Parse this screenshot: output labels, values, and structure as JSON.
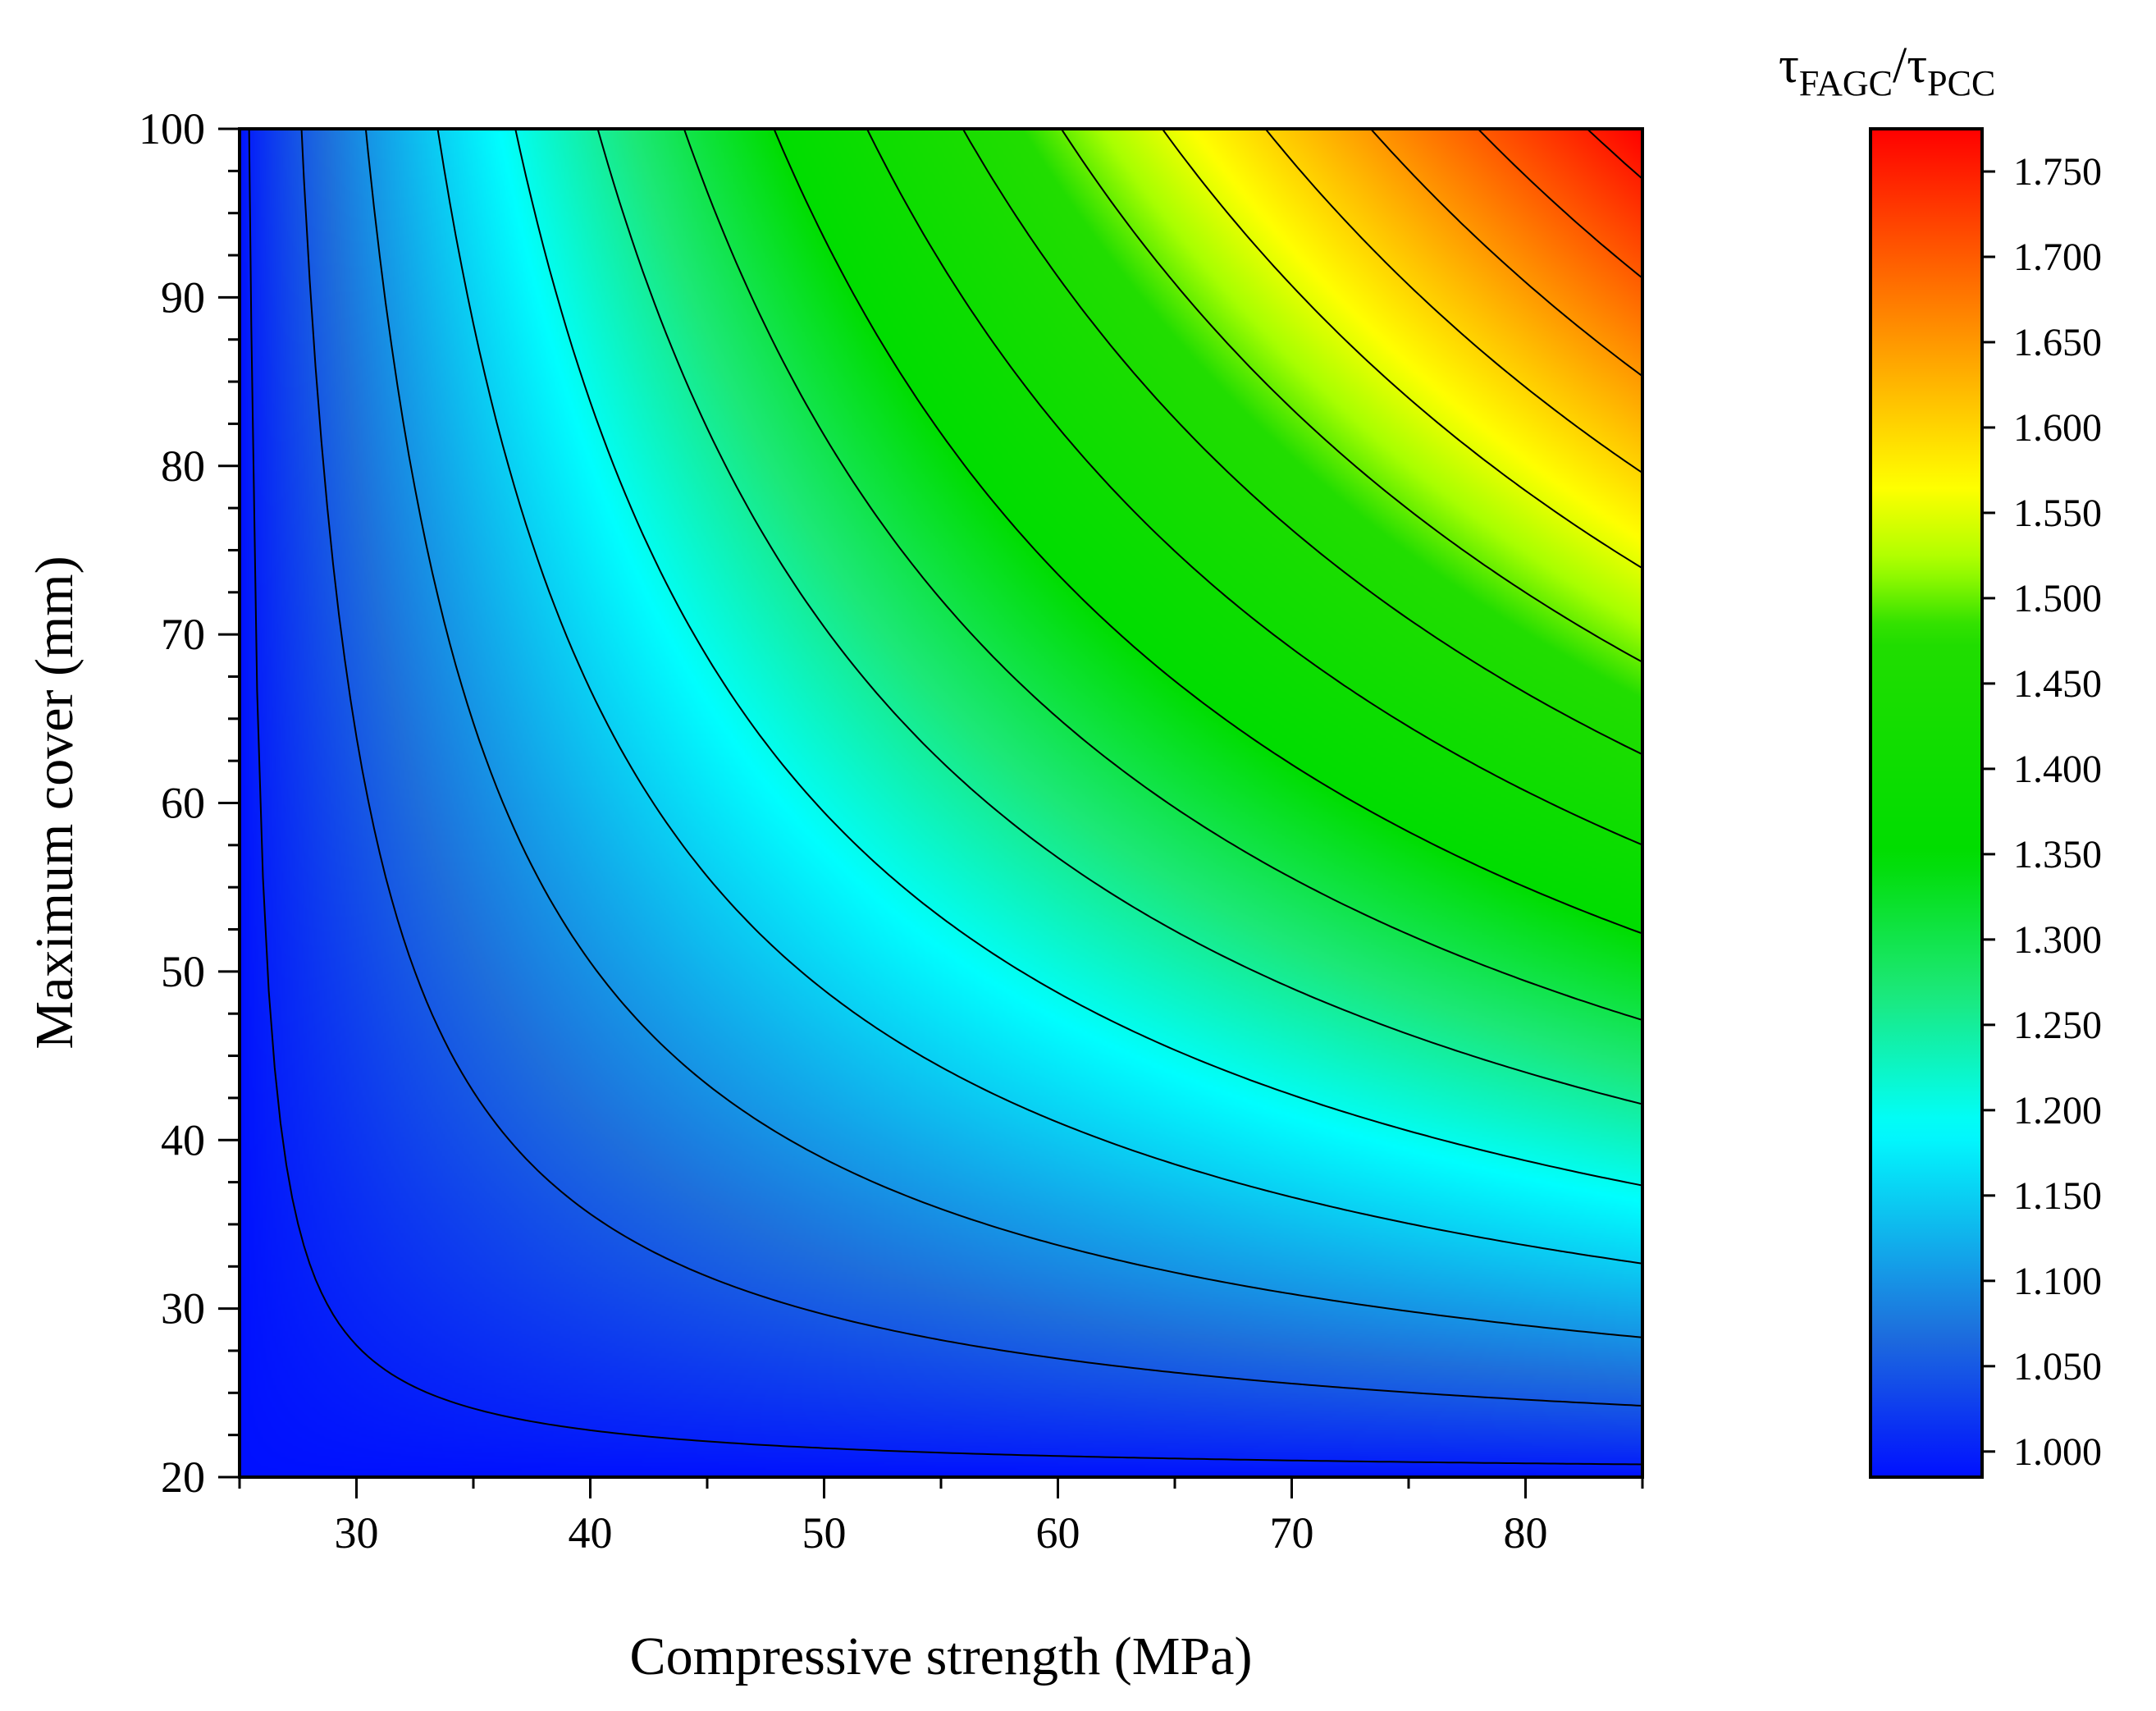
{
  "chart_data": {
    "type": "contour",
    "title": "",
    "xlabel": "Compressive strength (MPa)",
    "ylabel": "Maximum cover (mm)",
    "xlim": [
      25,
      85
    ],
    "ylim": [
      20,
      100
    ],
    "x_ticks": [
      30,
      40,
      50,
      60,
      70,
      80
    ],
    "x_tick_labels": [
      "30",
      "40",
      "50",
      "60",
      "70",
      "80"
    ],
    "y_ticks": [
      20,
      30,
      40,
      50,
      60,
      70,
      80,
      90,
      100
    ],
    "y_tick_labels": [
      "20",
      "30",
      "40",
      "50",
      "60",
      "70",
      "80",
      "90",
      "100"
    ],
    "colorbar": {
      "title_main": "τ",
      "title_sub1": "FAGC",
      "title_sep": "/τ",
      "title_sub2": "PCC",
      "range": [
        0.985,
        1.775
      ],
      "ticks": [
        1.0,
        1.05,
        1.1,
        1.15,
        1.2,
        1.25,
        1.3,
        1.35,
        1.4,
        1.45,
        1.5,
        1.55,
        1.6,
        1.65,
        1.7,
        1.75
      ],
      "tick_labels": [
        "1.000",
        "1.050",
        "1.100",
        "1.150",
        "1.200",
        "1.250",
        "1.300",
        "1.350",
        "1.400",
        "1.450",
        "1.500",
        "1.550",
        "1.600",
        "1.650",
        "1.700",
        "1.750"
      ],
      "colormap": [
        {
          "v": 0.985,
          "color": "#0010ff"
        },
        {
          "v": 1.07,
          "color": "#1e6fdc"
        },
        {
          "v": 1.19,
          "color": "#00ffff"
        },
        {
          "v": 1.27,
          "color": "#1ce878"
        },
        {
          "v": 1.35,
          "color": "#00dd00"
        },
        {
          "v": 1.48,
          "color": "#22dd00"
        },
        {
          "v": 1.52,
          "color": "#a8ff00"
        },
        {
          "v": 1.565,
          "color": "#ffff00"
        },
        {
          "v": 1.63,
          "color": "#ffb000"
        },
        {
          "v": 1.775,
          "color": "#ff0000"
        }
      ]
    },
    "model": {
      "formula": "z = 0.985 + 0.79 * ((x-25)/60)^0.8 * ((y-20)/80)^0.85",
      "z_min": 0.985,
      "z_range": 0.79,
      "x_exponent": 0.8,
      "y_exponent": 0.85
    },
    "contour_levels": [
      1.0,
      1.05,
      1.1,
      1.15,
      1.2,
      1.25,
      1.3,
      1.35,
      1.4,
      1.45,
      1.5,
      1.55,
      1.6,
      1.65,
      1.7,
      1.75
    ]
  }
}
